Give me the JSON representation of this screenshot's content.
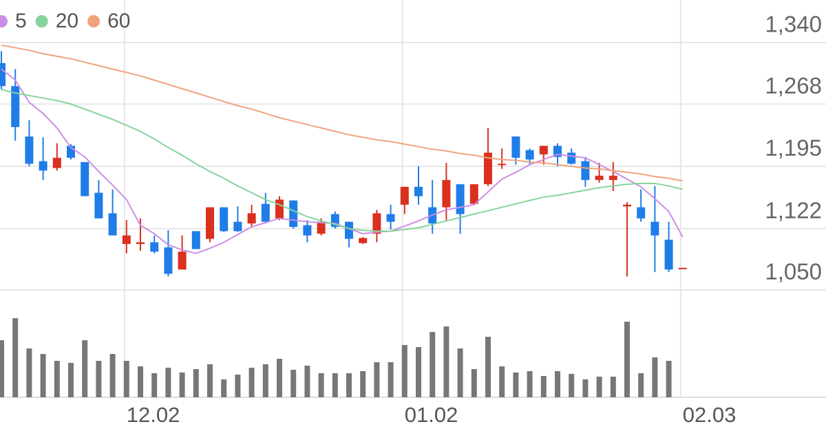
{
  "chart_data": {
    "type": "candlestick",
    "categories": [
      null,
      null,
      null,
      null,
      null,
      null,
      null,
      null,
      null,
      "12.02",
      null,
      null,
      null,
      null,
      null,
      null,
      null,
      null,
      null,
      null,
      null,
      null,
      null,
      null,
      null,
      null,
      null,
      null,
      null,
      "01.02",
      null,
      null,
      null,
      null,
      null,
      null,
      null,
      null,
      null,
      null,
      null,
      null,
      null,
      null,
      null,
      null,
      null,
      null,
      null,
      "02.03"
    ],
    "open": [
      1316,
      1289,
      1230,
      1201,
      1193,
      1219,
      1200,
      1164,
      1140,
      1104,
      1104,
      1106,
      1100,
      1074,
      1119,
      1110,
      1147,
      1130,
      1128,
      1151,
      1134,
      1155,
      1126,
      1116,
      1139,
      1130,
      1105,
      1116,
      1139,
      1150,
      1171,
      1147,
      1147,
      1174,
      1151,
      1174,
      1197,
      1230,
      1214,
      1209,
      1219,
      1211,
      1201,
      1179,
      1179,
      1148,
      1147,
      1130,
      1109,
      1075
    ],
    "high": [
      1330,
      1309,
      1249,
      1229,
      1222,
      1221,
      1200,
      1179,
      1168,
      1132,
      1134,
      1114,
      1120,
      1114,
      1119,
      1147,
      1147,
      1148,
      1150,
      1164,
      1160,
      1155,
      1132,
      1134,
      1142,
      1130,
      1112,
      1144,
      1150,
      1171,
      1195,
      1179,
      1199,
      1174,
      1174,
      1240,
      1216,
      1230,
      1216,
      1219,
      1222,
      1216,
      1206,
      1199,
      1200,
      1153,
      1168,
      1172,
      1130,
      1076
    ],
    "low": [
      1285,
      1225,
      1195,
      1179,
      1190,
      1203,
      1160,
      1134,
      1114,
      1093,
      1096,
      1093,
      1066,
      1074,
      1098,
      1106,
      1118,
      1118,
      1124,
      1128,
      1132,
      1122,
      1106,
      1114,
      1122,
      1100,
      1104,
      1106,
      1121,
      1139,
      1150,
      1116,
      1132,
      1116,
      1150,
      1172,
      1192,
      1197,
      1197,
      1197,
      1195,
      1197,
      1171,
      1176,
      1166,
      1066,
      1130,
      1071,
      1071,
      1075
    ],
    "close": [
      1289,
      1241,
      1198,
      1190,
      1205,
      1205,
      1160,
      1134,
      1114,
      1114,
      1106,
      1095,
      1069,
      1095,
      1098,
      1147,
      1119,
      1119,
      1140,
      1130,
      1156,
      1124,
      1114,
      1130,
      1124,
      1110,
      1111,
      1140,
      1130,
      1171,
      1160,
      1128,
      1179,
      1139,
      1174,
      1211,
      1198,
      1205,
      1203,
      1219,
      1206,
      1198,
      1179,
      1184,
      1184,
      1150,
      1134,
      1114,
      1074,
      1076
    ],
    "up_color": "#d9301f",
    "down_color": "#1f7de8",
    "ylim": [
      1050,
      1340
    ],
    "yticks": [
      {
        "value": 1340,
        "label": "1,340"
      },
      {
        "value": 1268,
        "label": "1,268"
      },
      {
        "value": 1195,
        "label": "1,195"
      },
      {
        "value": 1122,
        "label": "1,122"
      },
      {
        "value": 1050,
        "label": "1,050"
      }
    ],
    "grid": true,
    "series": [
      {
        "name": "5",
        "color": "#cc8ee6",
        "values": [
          1309,
          1296,
          1270,
          1257,
          1240,
          1217,
          1206,
          1189,
          1173,
          1156,
          1126,
          1116,
          1103,
          1097,
          1093,
          1099,
          1106,
          1115,
          1124,
          1129,
          1134,
          1132,
          1130,
          1129,
          1128,
          1122,
          1116,
          1118,
          1119,
          1125,
          1131,
          1138,
          1144,
          1147,
          1150,
          1165,
          1180,
          1188,
          1197,
          1203,
          1209,
          1207,
          1205,
          1197,
          1189,
          1180,
          1171,
          1157,
          1142,
          1112
        ]
      },
      {
        "name": "20",
        "color": "#86d49b",
        "values": [
          1285,
          1281,
          1278,
          1275,
          1272,
          1268,
          1262,
          1256,
          1250,
          1243,
          1236,
          1227,
          1217,
          1208,
          1198,
          1189,
          1181,
          1172,
          1164,
          1156,
          1150,
          1143,
          1136,
          1131,
          1127,
          1122,
          1120,
          1119,
          1119,
          1121,
          1123,
          1127,
          1131,
          1135,
          1139,
          1143,
          1147,
          1151,
          1155,
          1159,
          1161,
          1164,
          1167,
          1170,
          1172,
          1174,
          1175,
          1175,
          1172,
          1168
        ]
      },
      {
        "name": "60",
        "color": "#f0a27c",
        "values": [
          1337,
          1334,
          1331,
          1327,
          1324,
          1321,
          1317,
          1313,
          1309,
          1305,
          1301,
          1296,
          1291,
          1286,
          1281,
          1276,
          1271,
          1266,
          1262,
          1257,
          1252,
          1248,
          1244,
          1240,
          1236,
          1232,
          1229,
          1226,
          1224,
          1221,
          1218,
          1215,
          1213,
          1210,
          1208,
          1205,
          1203,
          1202,
          1200,
          1199,
          1197,
          1195,
          1193,
          1192,
          1190,
          1188,
          1186,
          1183,
          1181,
          1178
        ]
      }
    ],
    "volume": [
      83,
      115,
      71,
      63,
      53,
      50,
      83,
      53,
      63,
      53,
      45,
      35,
      43,
      36,
      41,
      48,
      26,
      33,
      43,
      48,
      56,
      40,
      46,
      35,
      35,
      35,
      38,
      51,
      51,
      76,
      73,
      95,
      103,
      71,
      41,
      88,
      45,
      36,
      38,
      31,
      38,
      34,
      26,
      30,
      30,
      110,
      35,
      58,
      53,
      0
    ],
    "volume_color": "#777777",
    "volume_ylim": [
      0,
      120
    ]
  }
}
